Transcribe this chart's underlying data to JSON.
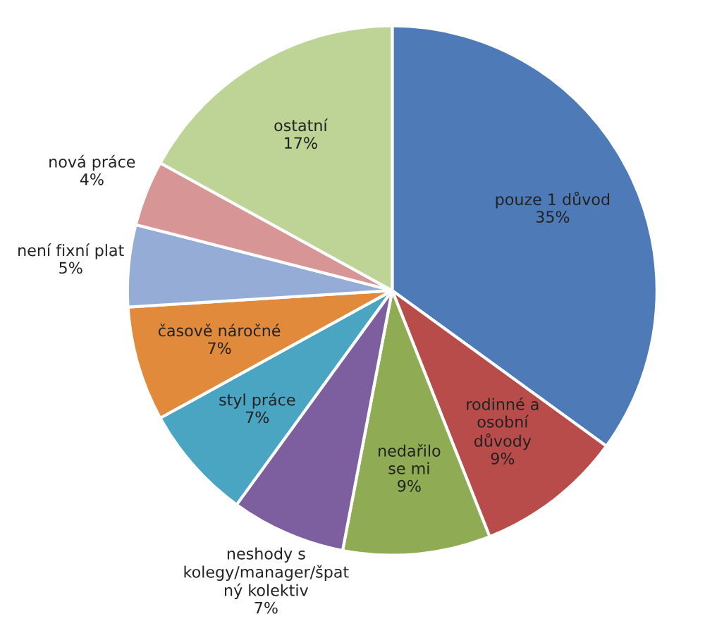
{
  "chart_data": {
    "type": "pie",
    "categories": [
      "pouze 1 důvod",
      "rodinné a\nosobní\ndůvody",
      "nedařilo\nse mi",
      "neshody s\nkolegy/manager/špat\nný kolektiv",
      "styl práce",
      "časově náročné",
      "není fixní plat",
      "nová práce",
      "ostatní"
    ],
    "values": [
      35,
      9,
      9,
      7,
      7,
      7,
      5,
      4,
      17
    ],
    "value_labels": [
      "35%",
      "9%",
      "9%",
      "7%",
      "7%",
      "7%",
      "5%",
      "4%",
      "17%"
    ],
    "colors": [
      "#4f7ab8",
      "#b84c4a",
      "#8fac55",
      "#7d5f9f",
      "#4aa5c3",
      "#e18a3c",
      "#95add6",
      "#d89595",
      "#bed396"
    ],
    "legend": false
  }
}
